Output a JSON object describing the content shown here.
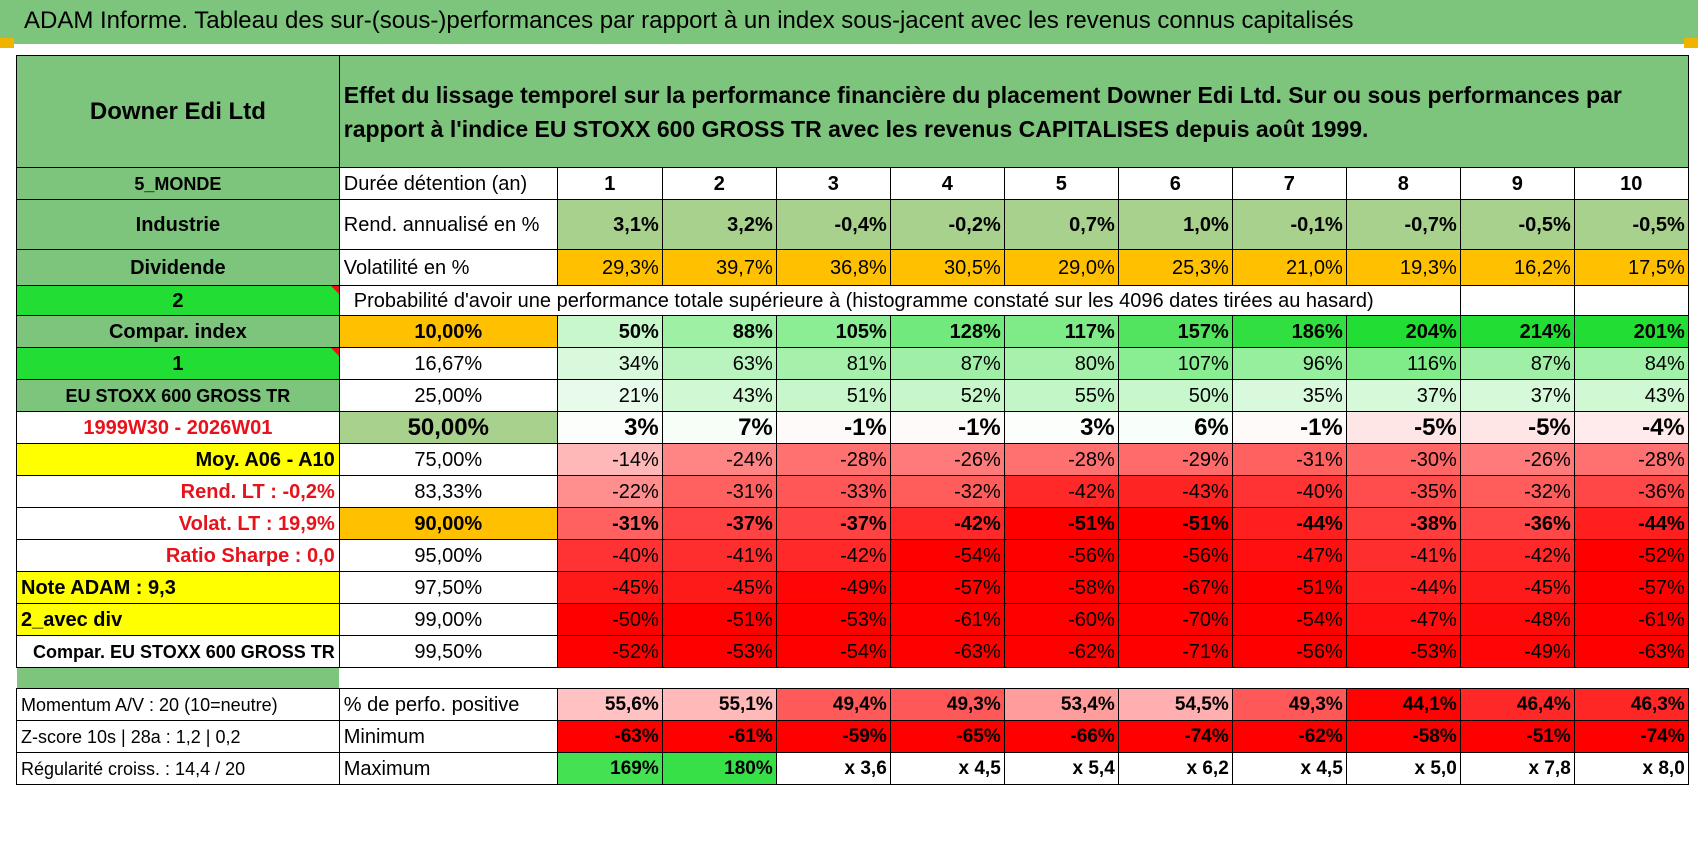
{
  "title": "ADAM Informe. Tableau des sur-(sous-)performances par rapport à un index sous-jacent avec les revenus connus capitalisés",
  "header": {
    "fund_name": "Downer Edi Ltd",
    "description": "Effet du lissage temporel sur la performance financière du placement Downer Edi Ltd. Sur ou sous performances par rapport à l'indice EU STOXX 600 GROSS TR avec les revenus CAPITALISES depuis août 1999."
  },
  "side": {
    "zone": "5_MONDE",
    "sector": "Industrie",
    "dividend": "Dividende",
    "value_2": "2",
    "compar_index": "Compar. index",
    "value_1": "1",
    "index_name": "EU STOXX 600 GROSS TR",
    "period": "1999W30 - 2026W01",
    "moy": "Moy. A06 - A10",
    "rend_lt": "Rend. LT :    -0,2%",
    "volat_lt": "Volat. LT :    19,9%",
    "sharpe": "Ratio Sharpe :     0,0",
    "note": "Note ADAM : 9,3",
    "avec_div": "2_avec div",
    "compar_full": "Compar. EU STOXX 600 GROSS TR",
    "momentum": "Momentum A/V : 20 (10=neutre)",
    "zscore": "Z-score 10s | 28a : 1,2 | 0,2",
    "regularite": "Régularité croiss. : 14,4 / 20"
  },
  "table": {
    "duration_label": "Durée détention (an)",
    "years": [
      "1",
      "2",
      "3",
      "4",
      "5",
      "6",
      "7",
      "8",
      "9",
      "10"
    ],
    "rend_label": "Rend. annualisé en %",
    "rend": [
      "3,1%",
      "3,2%",
      "-0,4%",
      "-0,2%",
      "0,7%",
      "1,0%",
      "-0,1%",
      "-0,7%",
      "-0,5%",
      "-0,5%"
    ],
    "vol_label": "Volatilité en %",
    "vol": [
      "29,3%",
      "39,7%",
      "36,8%",
      "30,5%",
      "29,0%",
      "25,3%",
      "21,0%",
      "19,3%",
      "16,2%",
      "17,5%"
    ],
    "prob_label": "Probabilité d'avoir une performance totale supérieure à (histogramme constaté sur les 4096 dates tirées au hasard)",
    "rows": [
      {
        "p": "10,00%",
        "v": [
          "50%",
          "88%",
          "105%",
          "128%",
          "117%",
          "157%",
          "186%",
          "204%",
          "214%",
          "201%"
        ]
      },
      {
        "p": "16,67%",
        "v": [
          "34%",
          "63%",
          "81%",
          "87%",
          "80%",
          "107%",
          "96%",
          "116%",
          "87%",
          "84%"
        ]
      },
      {
        "p": "25,00%",
        "v": [
          "21%",
          "43%",
          "51%",
          "52%",
          "55%",
          "50%",
          "35%",
          "37%",
          "37%",
          "43%"
        ]
      },
      {
        "p": "50,00%",
        "v": [
          "3%",
          "7%",
          "-1%",
          "-1%",
          "3%",
          "6%",
          "-1%",
          "-5%",
          "-5%",
          "-4%"
        ]
      },
      {
        "p": "75,00%",
        "v": [
          "-14%",
          "-24%",
          "-28%",
          "-26%",
          "-28%",
          "-29%",
          "-31%",
          "-30%",
          "-26%",
          "-28%"
        ]
      },
      {
        "p": "83,33%",
        "v": [
          "-22%",
          "-31%",
          "-33%",
          "-32%",
          "-42%",
          "-43%",
          "-40%",
          "-35%",
          "-32%",
          "-36%"
        ]
      },
      {
        "p": "90,00%",
        "v": [
          "-31%",
          "-37%",
          "-37%",
          "-42%",
          "-51%",
          "-51%",
          "-44%",
          "-38%",
          "-36%",
          "-44%"
        ]
      },
      {
        "p": "95,00%",
        "v": [
          "-40%",
          "-41%",
          "-42%",
          "-54%",
          "-56%",
          "-56%",
          "-47%",
          "-41%",
          "-42%",
          "-52%"
        ]
      },
      {
        "p": "97,50%",
        "v": [
          "-45%",
          "-45%",
          "-49%",
          "-57%",
          "-58%",
          "-67%",
          "-51%",
          "-44%",
          "-45%",
          "-57%"
        ]
      },
      {
        "p": "99,00%",
        "v": [
          "-50%",
          "-51%",
          "-53%",
          "-61%",
          "-60%",
          "-70%",
          "-54%",
          "-47%",
          "-48%",
          "-61%"
        ]
      },
      {
        "p": "99,50%",
        "v": [
          "-52%",
          "-53%",
          "-54%",
          "-63%",
          "-62%",
          "-71%",
          "-56%",
          "-53%",
          "-49%",
          "-63%"
        ]
      }
    ],
    "pos_label": "% de perfo. positive",
    "pos": [
      "55,6%",
      "55,1%",
      "49,4%",
      "49,3%",
      "53,4%",
      "54,5%",
      "49,3%",
      "44,1%",
      "46,4%",
      "46,3%"
    ],
    "min_label": "Minimum",
    "min": [
      "-63%",
      "-61%",
      "-59%",
      "-65%",
      "-66%",
      "-74%",
      "-62%",
      "-58%",
      "-51%",
      "-74%"
    ],
    "max_label": "Maximum",
    "max": [
      "169%",
      "180%",
      "x 3,6",
      "x 4,5",
      "x 5,4",
      "x 6,2",
      "x 4,5",
      "x 5,0",
      "x 7,8",
      "x 8,0"
    ]
  },
  "colors": {
    "header_green": "#7dc47d",
    "light_green": "#a9d18e",
    "bright_green": "#22dd33",
    "orange": "#ffc000",
    "yellow": "#ffff00",
    "red_text": "#e8121a"
  }
}
